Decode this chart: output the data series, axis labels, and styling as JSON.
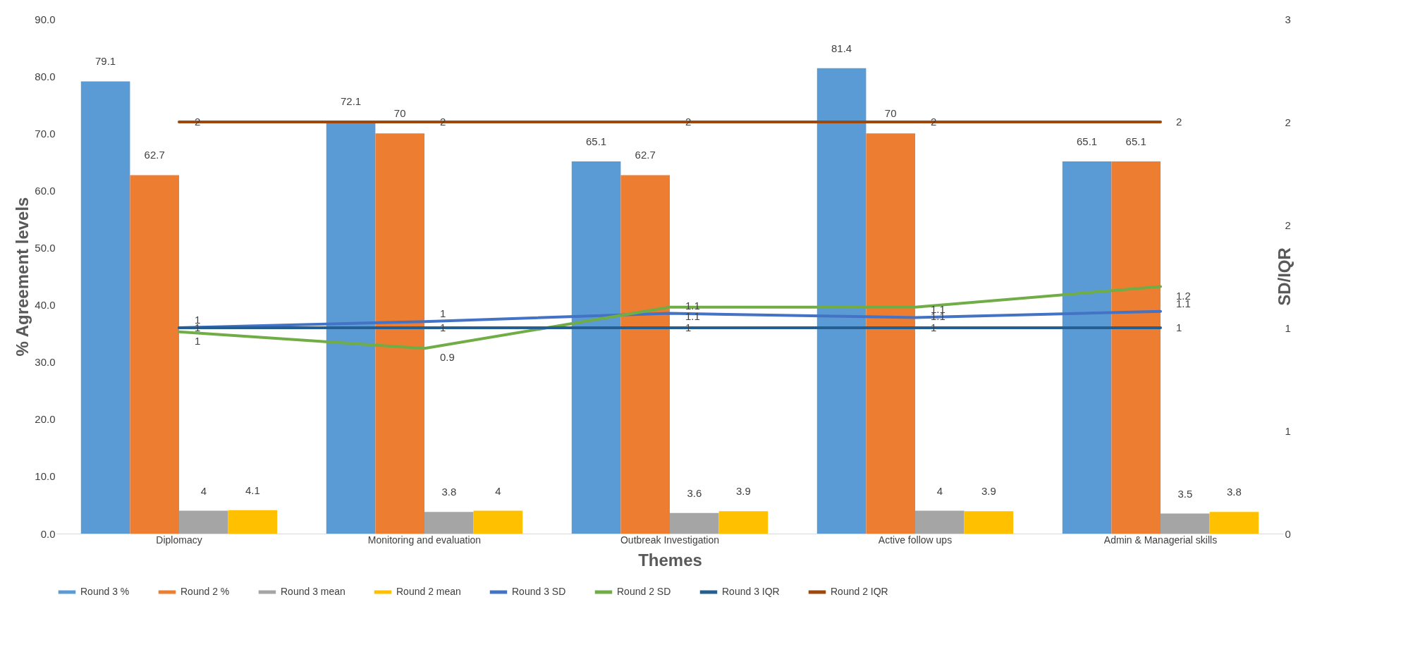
{
  "chart_data": {
    "type": "bar",
    "xlabel": "Themes",
    "ylabel": "% Agreement levels",
    "y2label": "SD/IQR",
    "categories": [
      "Diplomacy",
      "Monitoring and evaluation",
      "Outbreak Investigation",
      "Active follow ups",
      "Admin & Managerial skills"
    ],
    "series": [
      {
        "name": "Round 3 %",
        "color": "#5b9bd5",
        "values": [
          79.1,
          72.1,
          65.1,
          81.4,
          65.1
        ]
      },
      {
        "name": "Round 2 %",
        "color": "#ed7d31",
        "values": [
          62.7,
          70,
          62.7,
          70,
          65.1
        ]
      },
      {
        "name": "Round 3 mean",
        "color": "#a5a5a5",
        "values": [
          4,
          3.8,
          3.6,
          4,
          3.5
        ]
      },
      {
        "name": "Round 2 mean",
        "color": "#ffc000",
        "values": [
          4.1,
          4,
          3.9,
          3.9,
          3.8
        ]
      },
      {
        "name": "Round 3 SD",
        "type": "line",
        "axis": "y2",
        "color": "#4472c4",
        "values": [
          1.0,
          1.03,
          1.07,
          1.05,
          1.08
        ],
        "value_labels": [
          "1",
          "1",
          "1.1",
          "1.1",
          "1.1"
        ]
      },
      {
        "name": "Round 2 SD",
        "type": "line",
        "axis": "y2",
        "color": "#70ad47",
        "values": [
          0.98,
          0.9,
          1.1,
          1.1,
          1.2
        ],
        "value_labels": [
          "1",
          "0.9",
          "1.1",
          "1.1",
          "1.2"
        ]
      },
      {
        "name": "Round 3 IQR",
        "type": "line",
        "axis": "y2",
        "color": "#255e91",
        "values": [
          1,
          1,
          1,
          1,
          1
        ]
      },
      {
        "name": "Round 2 IQR",
        "type": "line",
        "axis": "y2",
        "color": "#9e480e",
        "values": [
          2,
          2,
          2,
          2,
          2
        ]
      }
    ],
    "ylim": [
      0,
      90
    ],
    "yticks": [
      {
        "value": 0,
        "label": "0.0"
      },
      {
        "value": 10,
        "label": "10.0"
      },
      {
        "value": 20,
        "label": "20.0"
      },
      {
        "value": 30,
        "label": "30.0"
      },
      {
        "value": 40,
        "label": "40.0"
      },
      {
        "value": 50,
        "label": "50.0"
      },
      {
        "value": 60,
        "label": "60.0"
      },
      {
        "value": 70,
        "label": "70.0"
      },
      {
        "value": 80,
        "label": "80.0"
      },
      {
        "value": 90,
        "label": "90.0"
      }
    ],
    "y2lim": [
      0,
      2.5
    ],
    "y2ticks": [
      0,
      {
        "value": 0.5,
        "label": "1"
      },
      1,
      {
        "value": 1.5,
        "label": "2"
      },
      2,
      {
        "value": 2.5,
        "label": "3"
      }
    ],
    "data_labels": true,
    "legend": "bottom"
  }
}
